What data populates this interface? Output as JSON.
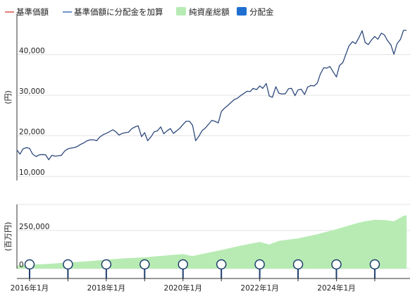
{
  "colors": {
    "nav_legend": "#d9534f",
    "nav_adjusted": "#3f6fb6",
    "nav_line": "#2f4a7d",
    "assets_fill": "#b7ebb3",
    "distribution": "#1f6fd1",
    "grid": "#e3e3e3",
    "axis": "#333333"
  },
  "chart_data": {
    "type": "line",
    "legend": [
      {
        "label": "基準価額",
        "marker": "line",
        "color": "#d9534f"
      },
      {
        "label": "基準価額に分配金を加算",
        "marker": "line",
        "color": "#3f6fb6"
      },
      {
        "label": "純資産総額",
        "marker": "box",
        "color": "#b7ebb3"
      },
      {
        "label": "分配金",
        "marker": "box",
        "color": "#1f6fd1"
      }
    ],
    "legend_position": "top",
    "grid": true,
    "x_range": [
      2015.67,
      2025.92
    ],
    "x_tick_labels": [
      {
        "year": 2016,
        "label": "2016年1月"
      },
      {
        "year": 2018,
        "label": "2018年1月"
      },
      {
        "year": 2020,
        "label": "2020年1月"
      },
      {
        "year": 2022,
        "label": "2022年1月"
      },
      {
        "year": 2024,
        "label": "2024年1月"
      }
    ],
    "upper": {
      "ylabel": "(円)",
      "y_ticks": [
        10000,
        20000,
        30000,
        40000
      ],
      "ylim": [
        9000,
        50000
      ],
      "series_name": "基準価額に分配金を加算",
      "points": [
        [
          2015.67,
          16500
        ],
        [
          2015.75,
          15500
        ],
        [
          2015.83,
          16800
        ],
        [
          2015.92,
          17100
        ],
        [
          2016.0,
          16900
        ],
        [
          2016.08,
          15500
        ],
        [
          2016.17,
          14900
        ],
        [
          2016.25,
          15300
        ],
        [
          2016.33,
          15400
        ],
        [
          2016.42,
          15300
        ],
        [
          2016.5,
          14100
        ],
        [
          2016.58,
          15200
        ],
        [
          2016.67,
          15000
        ],
        [
          2016.75,
          15100
        ],
        [
          2016.83,
          15200
        ],
        [
          2016.92,
          16300
        ],
        [
          2017.0,
          16800
        ],
        [
          2017.08,
          17000
        ],
        [
          2017.17,
          17100
        ],
        [
          2017.25,
          17400
        ],
        [
          2017.33,
          17900
        ],
        [
          2017.42,
          18300
        ],
        [
          2017.5,
          18800
        ],
        [
          2017.58,
          19000
        ],
        [
          2017.67,
          19000
        ],
        [
          2017.75,
          18800
        ],
        [
          2017.83,
          19700
        ],
        [
          2017.92,
          20300
        ],
        [
          2018.0,
          20600
        ],
        [
          2018.08,
          21000
        ],
        [
          2018.17,
          21500
        ],
        [
          2018.25,
          21000
        ],
        [
          2018.33,
          20200
        ],
        [
          2018.42,
          20600
        ],
        [
          2018.5,
          20800
        ],
        [
          2018.58,
          20900
        ],
        [
          2018.67,
          21800
        ],
        [
          2018.75,
          22200
        ],
        [
          2018.83,
          22500
        ],
        [
          2018.92,
          19800
        ],
        [
          2019.0,
          20800
        ],
        [
          2019.08,
          18800
        ],
        [
          2019.17,
          19800
        ],
        [
          2019.25,
          21000
        ],
        [
          2019.33,
          21200
        ],
        [
          2019.42,
          22200
        ],
        [
          2019.5,
          20500
        ],
        [
          2019.58,
          21200
        ],
        [
          2019.67,
          21800
        ],
        [
          2019.75,
          20600
        ],
        [
          2019.83,
          21200
        ],
        [
          2019.92,
          21900
        ],
        [
          2020.0,
          22800
        ],
        [
          2020.08,
          23600
        ],
        [
          2020.17,
          23600
        ],
        [
          2020.25,
          22600
        ],
        [
          2020.33,
          18800
        ],
        [
          2020.42,
          20000
        ],
        [
          2020.5,
          21300
        ],
        [
          2020.58,
          21900
        ],
        [
          2020.67,
          22900
        ],
        [
          2020.75,
          23800
        ],
        [
          2020.83,
          23600
        ],
        [
          2020.92,
          23200
        ],
        [
          2021.0,
          26000
        ],
        [
          2021.08,
          26800
        ],
        [
          2021.17,
          27500
        ],
        [
          2021.25,
          28200
        ],
        [
          2021.33,
          28900
        ],
        [
          2021.42,
          29300
        ],
        [
          2021.5,
          29900
        ],
        [
          2021.58,
          30400
        ],
        [
          2021.67,
          31000
        ],
        [
          2021.75,
          30900
        ],
        [
          2021.83,
          31700
        ],
        [
          2021.92,
          31400
        ],
        [
          2022.0,
          32300
        ],
        [
          2022.08,
          31700
        ],
        [
          2022.17,
          32900
        ],
        [
          2022.25,
          29800
        ],
        [
          2022.33,
          29500
        ],
        [
          2022.42,
          32100
        ],
        [
          2022.5,
          30500
        ],
        [
          2022.58,
          30300
        ],
        [
          2022.67,
          30400
        ],
        [
          2022.75,
          31600
        ],
        [
          2022.83,
          31700
        ],
        [
          2022.92,
          29900
        ],
        [
          2023.0,
          31300
        ],
        [
          2023.08,
          31500
        ],
        [
          2023.17,
          30200
        ],
        [
          2023.25,
          32000
        ],
        [
          2023.33,
          32400
        ],
        [
          2023.42,
          32300
        ],
        [
          2023.5,
          33000
        ],
        [
          2023.58,
          35200
        ],
        [
          2023.67,
          36800
        ],
        [
          2023.75,
          36700
        ],
        [
          2023.83,
          37100
        ],
        [
          2023.92,
          35700
        ],
        [
          2024.0,
          34500
        ],
        [
          2024.08,
          37300
        ],
        [
          2024.17,
          38100
        ],
        [
          2024.25,
          40200
        ],
        [
          2024.33,
          42200
        ],
        [
          2024.42,
          43200
        ],
        [
          2024.5,
          42700
        ],
        [
          2024.58,
          44100
        ],
        [
          2024.67,
          45900
        ],
        [
          2024.75,
          43000
        ],
        [
          2024.83,
          42500
        ],
        [
          2024.92,
          43700
        ],
        [
          2025.0,
          44500
        ],
        [
          2025.08,
          43800
        ],
        [
          2025.17,
          45300
        ],
        [
          2025.25,
          44900
        ],
        [
          2025.33,
          43500
        ],
        [
          2025.42,
          42400
        ],
        [
          2025.5,
          40100
        ],
        [
          2025.58,
          42700
        ],
        [
          2025.67,
          43800
        ],
        [
          2025.75,
          46000
        ],
        [
          2025.83,
          46000
        ]
      ]
    },
    "lower": {
      "ylabel": "(百万円)",
      "y_ticks": [
        0,
        250000
      ],
      "ylim": [
        0,
        420000
      ],
      "series_name": "純資産総額",
      "points": [
        [
          2015.67,
          20000
        ],
        [
          2016.0,
          26000
        ],
        [
          2016.5,
          31000
        ],
        [
          2017.0,
          40000
        ],
        [
          2017.5,
          48000
        ],
        [
          2018.0,
          58000
        ],
        [
          2018.5,
          68000
        ],
        [
          2019.0,
          74000
        ],
        [
          2019.5,
          85000
        ],
        [
          2020.0,
          95000
        ],
        [
          2020.25,
          82000
        ],
        [
          2020.5,
          96000
        ],
        [
          2021.0,
          122000
        ],
        [
          2021.5,
          150000
        ],
        [
          2022.0,
          175000
        ],
        [
          2022.25,
          158000
        ],
        [
          2022.5,
          182000
        ],
        [
          2023.0,
          198000
        ],
        [
          2023.5,
          225000
        ],
        [
          2024.0,
          258000
        ],
        [
          2024.5,
          295000
        ],
        [
          2024.75,
          310000
        ],
        [
          2025.0,
          320000
        ],
        [
          2025.25,
          318000
        ],
        [
          2025.5,
          310000
        ],
        [
          2025.75,
          345000
        ],
        [
          2025.83,
          350000
        ]
      ],
      "distributions": [
        {
          "year": 2016.0,
          "value": 0
        },
        {
          "year": 2017.0,
          "value": 0
        },
        {
          "year": 2018.0,
          "value": 0
        },
        {
          "year": 2019.0,
          "value": 0
        },
        {
          "year": 2020.0,
          "value": 0
        },
        {
          "year": 2021.0,
          "value": 0
        },
        {
          "year": 2022.0,
          "value": 0
        },
        {
          "year": 2023.0,
          "value": 0
        },
        {
          "year": 2024.0,
          "value": 0
        },
        {
          "year": 2025.0,
          "value": 0
        }
      ]
    }
  }
}
